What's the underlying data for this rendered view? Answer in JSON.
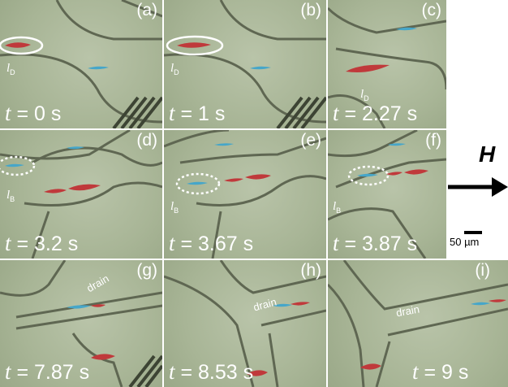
{
  "panels": [
    {
      "letter": "(a)",
      "t_var": "t",
      "t_text": " = 0 s",
      "droplet": "l",
      "droplet_sub": "D",
      "drain": ""
    },
    {
      "letter": "(b)",
      "t_var": "t",
      "t_text": " = 1 s",
      "droplet": "l",
      "droplet_sub": "D",
      "drain": ""
    },
    {
      "letter": "(c)",
      "t_var": "t",
      "t_text": " = 2.27 s",
      "droplet": "l",
      "droplet_sub": "D",
      "drain": ""
    },
    {
      "letter": "(d)",
      "t_var": "t",
      "t_text": " = 3.2 s",
      "droplet": "l",
      "droplet_sub": "B",
      "drain": ""
    },
    {
      "letter": "(e)",
      "t_var": "t",
      "t_text": " = 3.67 s",
      "droplet": "l",
      "droplet_sub": "B",
      "drain": ""
    },
    {
      "letter": "(f)",
      "t_var": "t",
      "t_text": " = 3.87 s",
      "droplet": "l",
      "droplet_sub": "B",
      "drain": ""
    },
    {
      "letter": "(g)",
      "t_var": "t",
      "t_text": " = 7.87 s",
      "droplet": "",
      "droplet_sub": "",
      "drain": "drain"
    },
    {
      "letter": "(h)",
      "t_var": "t",
      "t_text": " = 8.53 s",
      "droplet": "",
      "droplet_sub": "",
      "drain": "drain"
    },
    {
      "letter": "(i)",
      "t_var": "t",
      "t_text": " = 9 s",
      "droplet": "",
      "droplet_sub": "",
      "drain": "drain"
    }
  ],
  "field": {
    "label": "H"
  },
  "scale_bar": {
    "label": "50 µm"
  },
  "colors": {
    "droplet_red": "#c0393b",
    "droplet_blue": "#46a6c9",
    "channel_line": "#5f6752",
    "background": "#a8b596"
  }
}
